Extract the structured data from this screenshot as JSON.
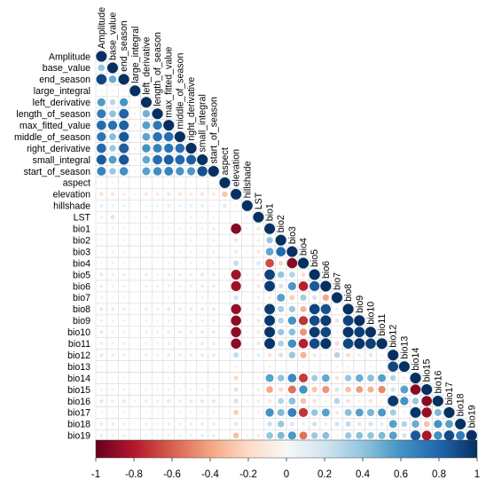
{
  "chart_data": {
    "type": "heatmap",
    "subtype": "correlation-matrix-lower-triangle",
    "glyph": "circle",
    "variables": [
      "Amplitude",
      "base_value",
      "end_season",
      "large_integral",
      "left_derivative",
      "length_of_season",
      "max_fitted_value",
      "middle_of_season",
      "right_derivative",
      "small_integral",
      "start_of_season",
      "aspect",
      "elevation",
      "hillshade",
      "LST",
      "bio1",
      "bio2",
      "bio3",
      "bio4",
      "bio5",
      "bio6",
      "bio7",
      "bio8",
      "bio9",
      "bio10",
      "bio11",
      "bio12",
      "bio13",
      "bio14",
      "bio15",
      "bio16",
      "bio17",
      "bio18",
      "bio19"
    ],
    "values": [
      [
        1
      ],
      [
        0.4,
        1
      ],
      [
        0.92,
        0.5,
        1
      ],
      [
        0.06,
        0.05,
        0.05,
        1
      ],
      [
        0.57,
        0.29,
        0.59,
        0.04,
        1
      ],
      [
        0.7,
        0.41,
        0.81,
        0.05,
        0.48,
        1
      ],
      [
        0.78,
        0.75,
        0.82,
        0.06,
        0.55,
        0.72,
        1
      ],
      [
        0.73,
        0.43,
        0.85,
        0.05,
        0.53,
        0.75,
        0.77,
        1
      ],
      [
        0.78,
        0.38,
        0.83,
        0.06,
        0.6,
        0.68,
        0.74,
        0.76,
        1
      ],
      [
        0.84,
        0.56,
        0.86,
        0.06,
        0.52,
        0.78,
        0.83,
        0.8,
        0.83,
        1
      ],
      [
        0.67,
        0.38,
        0.62,
        0.05,
        0.55,
        0.62,
        0.67,
        0.6,
        0.58,
        0.88,
        1
      ],
      [
        0.03,
        0.04,
        0.03,
        0.02,
        0.02,
        0.03,
        0.04,
        0.03,
        0.03,
        0.03,
        0.03,
        1
      ],
      [
        -0.14,
        -0.12,
        -0.1,
        -0.05,
        -0.11,
        -0.1,
        -0.12,
        -0.12,
        -0.1,
        -0.13,
        -0.11,
        -0.28,
        1
      ],
      [
        0.1,
        0.07,
        0.08,
        0.02,
        0.05,
        0.06,
        0.1,
        0.07,
        0.09,
        0.1,
        0.05,
        0.14,
        -0.05,
        1
      ],
      [
        0.07,
        -0.18,
        -0.05,
        0.02,
        0.08,
        0.03,
        -0.04,
        -0.02,
        0.06,
        0.05,
        0.05,
        0.03,
        0.04,
        0.04,
        1
      ],
      [
        0.05,
        0.07,
        0.05,
        0.03,
        0.05,
        0.04,
        0.05,
        0.06,
        0.06,
        0.06,
        0.09,
        0.02,
        -0.92,
        0.05,
        -0.13,
        1
      ],
      [
        0.05,
        0.04,
        0.06,
        0.02,
        0.04,
        0.03,
        0.05,
        0.05,
        0.06,
        0.05,
        0.07,
        0.02,
        -0.15,
        0.04,
        -0.08,
        0.38,
        1
      ],
      [
        0.05,
        0.07,
        0.05,
        0.03,
        0.04,
        0.04,
        0.05,
        0.06,
        0.05,
        0.06,
        0.08,
        0.02,
        -0.12,
        0.04,
        -0.12,
        0.52,
        0.78,
        1
      ],
      [
        -0.05,
        -0.06,
        -0.04,
        -0.02,
        -0.04,
        -0.03,
        -0.05,
        -0.04,
        -0.05,
        -0.06,
        -0.07,
        -0.02,
        0.25,
        -0.03,
        0.15,
        -0.65,
        -0.22,
        -0.92,
        1
      ],
      [
        0.12,
        0.08,
        0.07,
        0.03,
        0.08,
        0.06,
        0.1,
        0.08,
        0.08,
        0.12,
        0.1,
        0.02,
        -0.85,
        0.05,
        -0.1,
        0.93,
        0.39,
        0.3,
        -0.18,
        1
      ],
      [
        0.09,
        0.06,
        0.08,
        0.03,
        0.06,
        0.06,
        0.08,
        0.07,
        0.07,
        0.09,
        0.1,
        0.02,
        -0.86,
        0.04,
        -0.12,
        0.96,
        0.2,
        0.58,
        -0.78,
        0.85,
        1
      ],
      [
        -0.06,
        -0.04,
        -0.06,
        -0.02,
        -0.03,
        -0.04,
        -0.05,
        -0.05,
        -0.04,
        -0.06,
        -0.05,
        -0.02,
        0.2,
        -0.03,
        0.08,
        -0.1,
        0.55,
        -0.25,
        0.35,
        0.2,
        -0.38,
        1
      ],
      [
        0.12,
        0.1,
        0.09,
        0.04,
        0.1,
        0.08,
        0.12,
        0.1,
        0.1,
        0.12,
        0.12,
        0.02,
        -0.88,
        0.05,
        -0.1,
        0.96,
        0.35,
        0.37,
        -0.35,
        0.93,
        0.88,
        0.08,
        1
      ],
      [
        0.08,
        0.06,
        0.07,
        0.03,
        0.06,
        0.05,
        0.08,
        0.07,
        0.07,
        0.09,
        0.09,
        0.02,
        -0.9,
        0.04,
        -0.12,
        0.97,
        0.3,
        0.6,
        -0.72,
        0.9,
        0.96,
        -0.15,
        0.93,
        1
      ],
      [
        0.11,
        0.08,
        0.08,
        0.03,
        0.08,
        0.07,
        0.1,
        0.09,
        0.09,
        0.11,
        0.11,
        0.02,
        -0.9,
        0.05,
        -0.11,
        0.98,
        0.38,
        0.42,
        -0.45,
        0.96,
        0.92,
        0.05,
        0.98,
        0.95,
        1
      ],
      [
        0.09,
        0.07,
        0.08,
        0.03,
        0.06,
        0.06,
        0.09,
        0.07,
        0.07,
        0.1,
        0.1,
        0.02,
        -0.9,
        0.04,
        -0.12,
        0.98,
        0.32,
        0.62,
        -0.78,
        0.9,
        0.98,
        -0.2,
        0.92,
        0.98,
        0.94,
        1
      ],
      [
        -0.12,
        -0.09,
        -0.08,
        -0.04,
        -0.1,
        -0.07,
        -0.11,
        -0.09,
        -0.1,
        -0.12,
        -0.12,
        -0.02,
        0.25,
        -0.05,
        0.12,
        -0.15,
        0.2,
        0.38,
        -0.35,
        -0.12,
        -0.05,
        0.3,
        -0.18,
        -0.1,
        -0.15,
        -0.06,
        1
      ],
      [
        -0.04,
        -0.03,
        -0.03,
        -0.02,
        -0.03,
        -0.03,
        -0.04,
        -0.03,
        -0.03,
        -0.04,
        -0.04,
        -0.01,
        0.06,
        -0.02,
        0.03,
        -0.05,
        0.03,
        0.02,
        -0.04,
        -0.04,
        -0.03,
        0.05,
        -0.04,
        -0.03,
        -0.04,
        -0.03,
        0.92,
        1
      ],
      [
        0.05,
        0.04,
        0.04,
        0.02,
        0.04,
        0.03,
        0.05,
        0.04,
        0.04,
        0.05,
        0.05,
        0.01,
        -0.2,
        0.03,
        -0.06,
        0.55,
        0.4,
        0.65,
        -0.7,
        0.35,
        0.52,
        -0.15,
        0.38,
        0.5,
        0.42,
        0.55,
        0.3,
        -0.08,
        1
      ],
      [
        -0.08,
        -0.06,
        -0.07,
        -0.03,
        -0.06,
        -0.05,
        -0.07,
        -0.06,
        -0.06,
        -0.08,
        -0.07,
        -0.02,
        0.18,
        -0.03,
        0.08,
        -0.4,
        -0.2,
        -0.55,
        0.6,
        -0.28,
        -0.45,
        0.18,
        -0.3,
        -0.42,
        -0.35,
        -0.48,
        0.2,
        0.55,
        -0.92,
        1
      ],
      [
        -0.15,
        -0.1,
        -0.12,
        -0.05,
        -0.1,
        -0.08,
        -0.13,
        -0.1,
        -0.11,
        -0.14,
        -0.14,
        -0.03,
        0.2,
        -0.06,
        0.1,
        -0.12,
        0.3,
        0.42,
        -0.3,
        -0.15,
        -0.05,
        0.3,
        -0.16,
        -0.08,
        -0.14,
        -0.05,
        0.97,
        0.6,
        0.38,
        -0.92,
        1
      ],
      [
        0.06,
        0.04,
        0.05,
        0.02,
        0.04,
        0.04,
        0.05,
        0.05,
        0.05,
        0.06,
        0.06,
        0.01,
        -0.25,
        0.03,
        -0.07,
        0.6,
        0.45,
        0.68,
        -0.72,
        0.4,
        0.55,
        -0.12,
        0.42,
        0.55,
        0.46,
        0.58,
        0.35,
        -0.05,
        0.98,
        -0.88,
        0.45,
        1
      ],
      [
        0.1,
        0.08,
        0.08,
        0.03,
        0.08,
        0.06,
        0.09,
        0.08,
        0.08,
        0.1,
        0.1,
        0.02,
        -0.16,
        0.05,
        -0.05,
        0.22,
        0.38,
        0.18,
        0.08,
        0.2,
        0.1,
        0.2,
        0.25,
        0.15,
        0.2,
        0.12,
        0.55,
        0.3,
        0.5,
        -0.3,
        0.6,
        0.55,
        1
      ],
      [
        0.1,
        0.08,
        0.08,
        0.03,
        0.06,
        0.06,
        0.09,
        0.08,
        0.08,
        0.1,
        0.1,
        0.02,
        -0.3,
        0.05,
        -0.1,
        0.4,
        0.45,
        0.58,
        -0.55,
        0.38,
        0.42,
        -0.05,
        0.38,
        0.42,
        0.4,
        0.45,
        0.55,
        0.2,
        0.85,
        -0.82,
        0.62,
        0.9,
        0.7,
        1
      ]
    ],
    "colorbar": {
      "min": -1,
      "max": 1,
      "ticks": [
        -1,
        -0.8,
        -0.6,
        -0.4,
        -0.2,
        0,
        0.2,
        0.4,
        0.6,
        0.8,
        1
      ],
      "tick_labels": [
        "-1",
        "-0.8",
        "-0.6",
        "-0.4",
        "-0.2",
        "0",
        "0.2",
        "0.4",
        "0.6",
        "0.8",
        "1"
      ]
    },
    "colors": {
      "negative": "#67001f",
      "neutral": "#f7f7f7",
      "positive": "#053061"
    },
    "grid": true,
    "legend_position": "bottom"
  }
}
